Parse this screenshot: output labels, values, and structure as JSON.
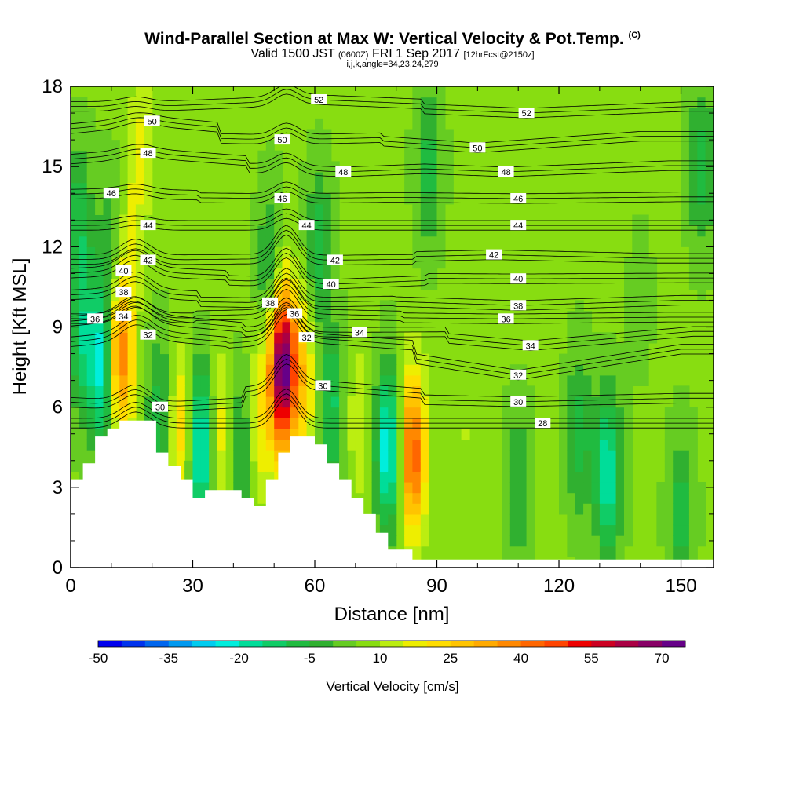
{
  "header": {
    "title": "Wind-Parallel Section at Max W: Vertical Velocity & Pot.Temp.",
    "copyright": "(C)",
    "valid_prefix": "Valid 1500 JST",
    "valid_utc": "(0600Z)",
    "valid_date": "FRI 1 Sep 2017",
    "forecast": "[12hrFcst@2150z]",
    "params": "i,j,k,angle=34,23,24,279"
  },
  "chart_data": {
    "type": "heatmap",
    "title": "Wind-Parallel Section at Max W: Vertical Velocity & Pot.Temp.",
    "xlabel": "Distance [nm]",
    "ylabel": "Height [Kft MSL]",
    "xlim": [
      0,
      158
    ],
    "ylim": [
      0,
      18
    ],
    "xticks": [
      0,
      30,
      60,
      90,
      120,
      150
    ],
    "yticks": [
      0,
      3,
      6,
      9,
      12,
      15,
      18
    ],
    "colorbar": {
      "label": "Vertical Velocity [cm/s]",
      "ticks": [
        -50,
        -35,
        -20,
        -5,
        10,
        25,
        40,
        55,
        70
      ],
      "levels": [
        -50,
        -45,
        -40,
        -35,
        -30,
        -25,
        -20,
        -15,
        -10,
        -5,
        0,
        5,
        10,
        15,
        20,
        25,
        30,
        35,
        40,
        45,
        50,
        55,
        60,
        65,
        70,
        75
      ],
      "colors": [
        "#0000ee",
        "#0033ee",
        "#0066ee",
        "#0099f0",
        "#00ccf0",
        "#00eedd",
        "#00dd99",
        "#10cc66",
        "#20bb40",
        "#30b030",
        "#66cc22",
        "#88dd11",
        "#bbee11",
        "#eeee00",
        "#ffdd00",
        "#ffc400",
        "#ffaa00",
        "#ff8800",
        "#ff6600",
        "#ff4400",
        "#ee0000",
        "#cc0022",
        "#aa0044",
        "#880066",
        "#660088"
      ]
    },
    "vertical_velocity_cells": [
      {
        "x": 2,
        "y": 13.0,
        "w": -8
      },
      {
        "x": 3,
        "y": 8.5,
        "w": -12
      },
      {
        "x": 8,
        "y": 7.5,
        "w": -25
      },
      {
        "x": 10,
        "y": 12.0,
        "w": -5
      },
      {
        "x": 12,
        "y": 8.0,
        "w": 45
      },
      {
        "x": 15,
        "y": 13.0,
        "w": 15
      },
      {
        "x": 18,
        "y": 16.5,
        "w": 15
      },
      {
        "x": 22,
        "y": 5.5,
        "w": -10
      },
      {
        "x": 27,
        "y": 5.0,
        "w": 25
      },
      {
        "x": 32,
        "y": 4.5,
        "w": -25
      },
      {
        "x": 37,
        "y": 5.0,
        "w": 20
      },
      {
        "x": 42,
        "y": 4.5,
        "w": -10
      },
      {
        "x": 46,
        "y": 5.5,
        "w": 20
      },
      {
        "x": 49,
        "y": 11.0,
        "w": -8
      },
      {
        "x": 52,
        "y": 7.5,
        "w": 75
      },
      {
        "x": 57,
        "y": 7.0,
        "w": 25
      },
      {
        "x": 61,
        "y": 12.0,
        "w": -8
      },
      {
        "x": 64,
        "y": 6.0,
        "w": -12
      },
      {
        "x": 71,
        "y": 5.5,
        "w": 15
      },
      {
        "x": 78,
        "y": 4.5,
        "w": -25
      },
      {
        "x": 84,
        "y": 4.3,
        "w": 45
      },
      {
        "x": 88,
        "y": 15.0,
        "w": -8
      },
      {
        "x": 97,
        "y": 5.0,
        "w": 10
      },
      {
        "x": 110,
        "y": 3.0,
        "w": -5
      },
      {
        "x": 125,
        "y": 5.0,
        "w": -8
      },
      {
        "x": 132,
        "y": 3.5,
        "w": -20
      },
      {
        "x": 140,
        "y": 10.0,
        "w": 3
      },
      {
        "x": 150,
        "y": 2.0,
        "w": -8
      },
      {
        "x": 155,
        "y": 15.0,
        "w": -8
      }
    ],
    "terrain_kft": [
      [
        0,
        3.3
      ],
      [
        3,
        3.9
      ],
      [
        6,
        4.9
      ],
      [
        9,
        5.2
      ],
      [
        12,
        5.5
      ],
      [
        18,
        5.5
      ],
      [
        21,
        4.3
      ],
      [
        24,
        3.8
      ],
      [
        27,
        3.3
      ],
      [
        30,
        2.6
      ],
      [
        33,
        2.9
      ],
      [
        39,
        2.9
      ],
      [
        42,
        2.6
      ],
      [
        45,
        2.3
      ],
      [
        48,
        3.3
      ],
      [
        51,
        4.3
      ],
      [
        54,
        4.9
      ],
      [
        57,
        4.9
      ],
      [
        60,
        4.6
      ],
      [
        63,
        3.9
      ],
      [
        66,
        3.3
      ],
      [
        69,
        2.6
      ],
      [
        72,
        2.0
      ],
      [
        75,
        1.3
      ],
      [
        78,
        0.7
      ],
      [
        84,
        0.3
      ],
      [
        88,
        0.3
      ],
      [
        158,
        0.3
      ]
    ],
    "potential_temperature_contours": [
      {
        "value": 52,
        "label_positions": [
          [
            61,
            17.5
          ],
          [
            112,
            17.0
          ]
        ]
      },
      {
        "value": 50,
        "label_positions": [
          [
            20,
            16.7
          ],
          [
            52,
            16.0
          ],
          [
            100,
            15.7
          ]
        ]
      },
      {
        "value": 48,
        "label_positions": [
          [
            19,
            15.5
          ],
          [
            67,
            14.8
          ],
          [
            107,
            14.8
          ]
        ]
      },
      {
        "value": 46,
        "label_positions": [
          [
            10,
            14.0
          ],
          [
            52,
            13.8
          ],
          [
            110,
            13.8
          ]
        ]
      },
      {
        "value": 44,
        "label_positions": [
          [
            19,
            12.8
          ],
          [
            58,
            12.8
          ],
          [
            110,
            12.8
          ]
        ]
      },
      {
        "value": 42,
        "label_positions": [
          [
            19,
            11.5
          ],
          [
            65,
            11.5
          ],
          [
            104,
            11.7
          ]
        ]
      },
      {
        "value": 40,
        "label_positions": [
          [
            13,
            11.1
          ],
          [
            64,
            10.6
          ],
          [
            110,
            10.8
          ]
        ]
      },
      {
        "value": 38,
        "label_positions": [
          [
            13,
            10.3
          ],
          [
            49,
            9.9
          ],
          [
            110,
            9.8
          ]
        ]
      },
      {
        "value": 36,
        "label_positions": [
          [
            6,
            9.3
          ],
          [
            55,
            9.5
          ],
          [
            107,
            9.3
          ]
        ]
      },
      {
        "value": 34,
        "label_positions": [
          [
            13,
            9.4
          ],
          [
            71,
            8.8
          ],
          [
            113,
            8.3
          ]
        ]
      },
      {
        "value": 32,
        "label_positions": [
          [
            19,
            8.7
          ],
          [
            58,
            8.6
          ],
          [
            110,
            7.2
          ]
        ]
      },
      {
        "value": 30,
        "label_positions": [
          [
            22,
            6.0
          ],
          [
            62,
            6.8
          ],
          [
            110,
            6.2
          ]
        ]
      },
      {
        "value": 28,
        "label_positions": [
          [
            116,
            5.4
          ]
        ]
      }
    ]
  }
}
